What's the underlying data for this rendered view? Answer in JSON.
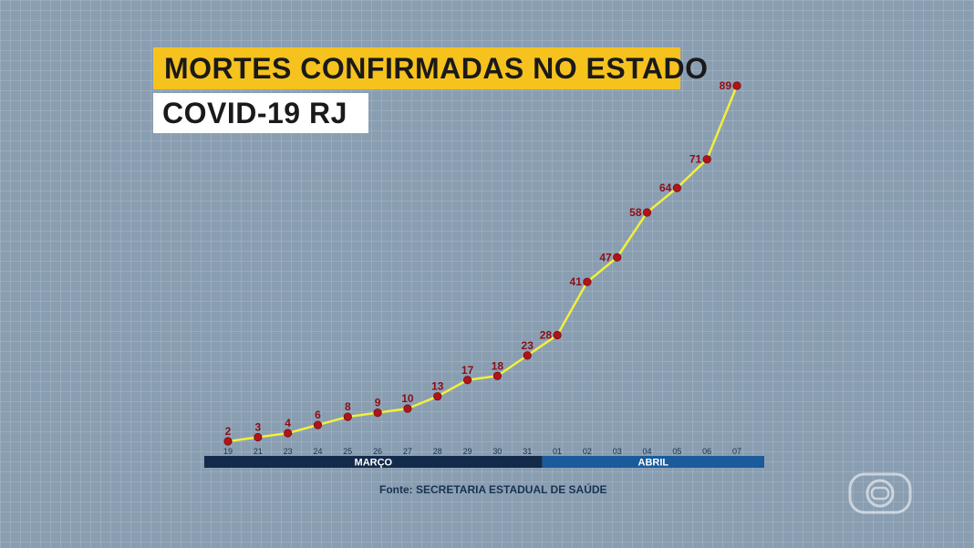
{
  "header": {
    "title": "MORTES CONFIRMADAS NO ESTADO",
    "subtitle": "COVID-19 RJ"
  },
  "source": "Fonte: SECRETARIA ESTADUAL DE SAÚDE",
  "colors": {
    "line": "#f2f03a",
    "marker": "#b0141b",
    "label": "#8c0f14",
    "month_bar_1": "#132a4a",
    "month_bar_2": "#1a5b9c",
    "accent_yellow": "#f6c21e"
  },
  "logo_icon": "globo-icon",
  "chart_data": {
    "type": "line",
    "title": "MORTES CONFIRMADAS NO ESTADO",
    "subtitle": "COVID-19 RJ",
    "x": [
      "19",
      "21",
      "23",
      "24",
      "25",
      "26",
      "27",
      "28",
      "29",
      "30",
      "31",
      "01",
      "02",
      "03",
      "04",
      "05",
      "06",
      "07"
    ],
    "months": [
      {
        "label": "MARÇO",
        "from": "19",
        "to": "31"
      },
      {
        "label": "ABRIL",
        "from": "01",
        "to": "07"
      }
    ],
    "series": [
      {
        "x": [
          "19",
          "21",
          "23",
          "24",
          "25",
          "26",
          "27",
          "28",
          "29",
          "30",
          "31",
          "01",
          "02",
          "03",
          "04",
          "05",
          "06",
          "07"
        ],
        "values": [
          2,
          3,
          4,
          6,
          8,
          9,
          10,
          13,
          17,
          18,
          23,
          28,
          41,
          47,
          58,
          64,
          71,
          89
        ]
      }
    ],
    "ylim": [
      0,
      89
    ],
    "grid": true,
    "legend": "none"
  }
}
